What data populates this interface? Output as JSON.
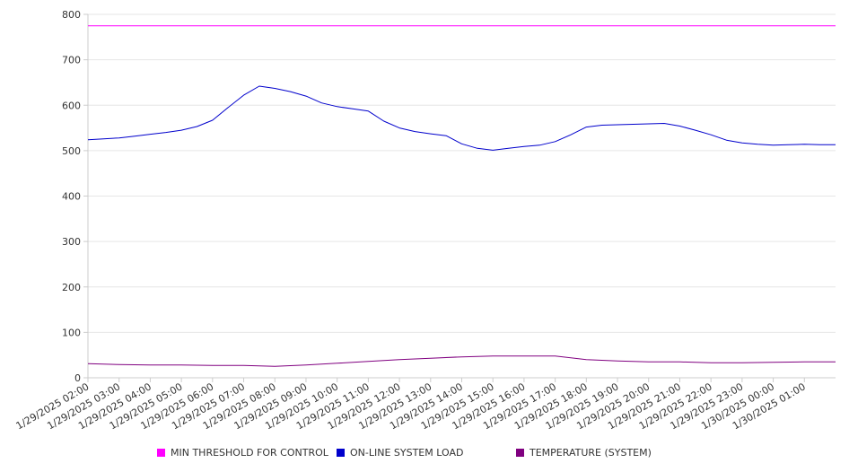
{
  "chart_data": {
    "type": "line",
    "ylim": [
      0,
      800
    ],
    "yticks": [
      0,
      100,
      200,
      300,
      400,
      500,
      600,
      700,
      800
    ],
    "grid": true,
    "legend_placement": "bottom",
    "x_tick_labels": [
      "1/29/2025 02:00",
      "1/29/2025 03:00",
      "1/29/2025 04:00",
      "1/29/2025 05:00",
      "1/29/2025 06:00",
      "1/29/2025 07:00",
      "1/29/2025 08:00",
      "1/29/2025 09:00",
      "1/29/2025 10:00",
      "1/29/2025 11:00",
      "1/29/2025 12:00",
      "1/29/2025 13:00",
      "1/29/2025 14:00",
      "1/29/2025 15:00",
      "1/29/2025 16:00",
      "1/29/2025 17:00",
      "1/29/2025 18:00",
      "1/29/2025 19:00",
      "1/29/2025 20:00",
      "1/29/2025 21:00",
      "1/29/2025 22:00",
      "1/29/2025 23:00",
      "1/30/2025 00:00",
      "1/30/2025 01:00"
    ],
    "series": [
      {
        "name": "MIN THRESHOLD FOR CONTROL",
        "color": "#ff00ff",
        "x": [
          "1/29/2025 02:00",
          "1/30/2025 02:00"
        ],
        "values": [
          775,
          775
        ]
      },
      {
        "name": "ON-LINE SYSTEM LOAD",
        "color": "#0000cc",
        "x": [
          "1/29/2025 02:00",
          "1/29/2025 02:30",
          "1/29/2025 03:00",
          "1/29/2025 03:30",
          "1/29/2025 04:00",
          "1/29/2025 04:30",
          "1/29/2025 05:00",
          "1/29/2025 05:30",
          "1/29/2025 06:00",
          "1/29/2025 06:30",
          "1/29/2025 07:00",
          "1/29/2025 07:30",
          "1/29/2025 08:00",
          "1/29/2025 08:30",
          "1/29/2025 09:00",
          "1/29/2025 09:30",
          "1/29/2025 10:00",
          "1/29/2025 10:30",
          "1/29/2025 11:00",
          "1/29/2025 11:30",
          "1/29/2025 12:00",
          "1/29/2025 12:30",
          "1/29/2025 13:00",
          "1/29/2025 13:30",
          "1/29/2025 14:00",
          "1/29/2025 14:30",
          "1/29/2025 15:00",
          "1/29/2025 15:30",
          "1/29/2025 16:00",
          "1/29/2025 16:30",
          "1/29/2025 17:00",
          "1/29/2025 17:30",
          "1/29/2025 18:00",
          "1/29/2025 18:30",
          "1/29/2025 19:00",
          "1/29/2025 19:30",
          "1/29/2025 20:00",
          "1/29/2025 20:30",
          "1/29/2025 21:00",
          "1/29/2025 21:30",
          "1/29/2025 22:00",
          "1/29/2025 22:30",
          "1/29/2025 23:00",
          "1/29/2025 23:30",
          "1/30/2025 00:00",
          "1/30/2025 00:30",
          "1/30/2025 01:00",
          "1/30/2025 01:30",
          "1/30/2025 02:00"
        ],
        "values": [
          524,
          526,
          528,
          532,
          536,
          540,
          545,
          553,
          567,
          595,
          622,
          642,
          637,
          630,
          620,
          605,
          597,
          592,
          587,
          565,
          550,
          542,
          537,
          533,
          515,
          505,
          501,
          505,
          509,
          512,
          520,
          535,
          552,
          556,
          557,
          558,
          559,
          560,
          554,
          545,
          535,
          523,
          517,
          514,
          512,
          513,
          514,
          513,
          513
        ]
      },
      {
        "name": "TEMPERATURE (SYSTEM)",
        "color": "#800080",
        "x": [
          "1/29/2025 02:00",
          "1/29/2025 03:00",
          "1/29/2025 04:00",
          "1/29/2025 05:00",
          "1/29/2025 06:00",
          "1/29/2025 07:00",
          "1/29/2025 08:00",
          "1/29/2025 09:00",
          "1/29/2025 10:00",
          "1/29/2025 11:00",
          "1/29/2025 12:00",
          "1/29/2025 13:00",
          "1/29/2025 14:00",
          "1/29/2025 15:00",
          "1/29/2025 16:00",
          "1/29/2025 17:00",
          "1/29/2025 18:00",
          "1/29/2025 19:00",
          "1/29/2025 20:00",
          "1/29/2025 21:00",
          "1/29/2025 22:00",
          "1/29/2025 23:00",
          "1/30/2025 00:00",
          "1/30/2025 01:00",
          "1/30/2025 02:00"
        ],
        "values": [
          31,
          29,
          28,
          28,
          27,
          27,
          25,
          28,
          32,
          36,
          40,
          43,
          46,
          48,
          48,
          48,
          40,
          37,
          35,
          35,
          33,
          33,
          34,
          35,
          35
        ]
      }
    ]
  }
}
